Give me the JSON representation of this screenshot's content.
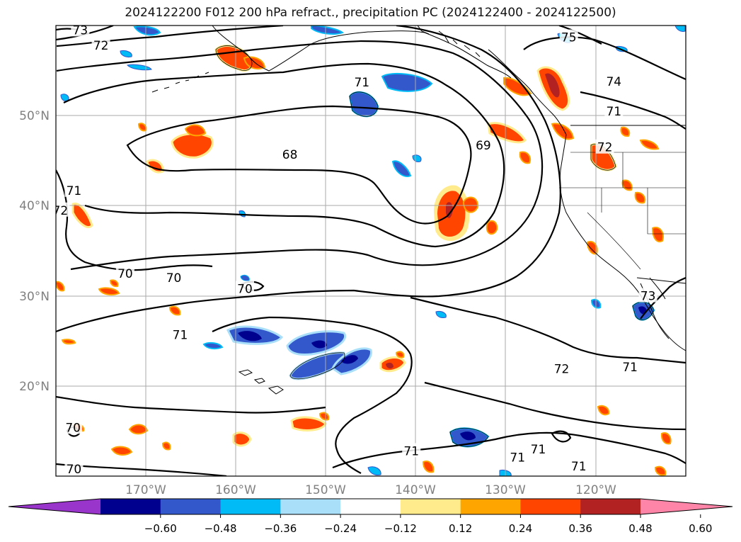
{
  "title": "2024122200 F012 200 hPa refract., precipitation PC (2024122400 - 2024122500)",
  "map": {
    "lon_range": [
      -180,
      -110
    ],
    "lat_range": [
      10,
      60
    ],
    "lat_labels": [
      "50°N",
      "40°N",
      "30°N",
      "20°N"
    ],
    "lon_labels": [
      "170°W",
      "160°W",
      "150°W",
      "140°W",
      "130°W",
      "120°W"
    ],
    "grid": true,
    "contour_labels": [
      {
        "text": "73",
        "lon": -177.3,
        "lat": 59.5
      },
      {
        "text": "72",
        "lon": -175.0,
        "lat": 57.8
      },
      {
        "text": "75",
        "lon": -123.0,
        "lat": 58.7
      },
      {
        "text": "71",
        "lon": -146.0,
        "lat": 53.7
      },
      {
        "text": "74",
        "lon": -118.0,
        "lat": 53.8
      },
      {
        "text": "71",
        "lon": -118.0,
        "lat": 50.5
      },
      {
        "text": "69",
        "lon": -132.5,
        "lat": 46.7
      },
      {
        "text": "68",
        "lon": -154.0,
        "lat": 45.7
      },
      {
        "text": "72",
        "lon": -119.0,
        "lat": 46.5
      },
      {
        "text": "71",
        "lon": -178.0,
        "lat": 41.7
      },
      {
        "text": "72",
        "lon": -179.5,
        "lat": 39.5
      },
      {
        "text": "70",
        "lon": -172.3,
        "lat": 32.5
      },
      {
        "text": "70",
        "lon": -166.9,
        "lat": 32.0
      },
      {
        "text": "70",
        "lon": -159.0,
        "lat": 30.8
      },
      {
        "text": "73",
        "lon": -114.2,
        "lat": 30.0
      },
      {
        "text": "71",
        "lon": -166.2,
        "lat": 25.7
      },
      {
        "text": "72",
        "lon": -123.8,
        "lat": 21.9
      },
      {
        "text": "71",
        "lon": -116.2,
        "lat": 22.1
      },
      {
        "text": "70",
        "lon": -178.1,
        "lat": 15.4
      },
      {
        "text": "71",
        "lon": -140.5,
        "lat": 12.8
      },
      {
        "text": "71",
        "lon": -126.4,
        "lat": 13.0
      },
      {
        "text": "71",
        "lon": -128.7,
        "lat": 12.1
      },
      {
        "text": "71",
        "lon": -121.9,
        "lat": 11.1
      },
      {
        "text": "70",
        "lon": -178.0,
        "lat": 10.8
      }
    ]
  },
  "colorbar": {
    "ticks": [
      "−0.60",
      "−0.48",
      "−0.36",
      "−0.24",
      "−0.12",
      "0.12",
      "0.24",
      "0.36",
      "0.48",
      "0.60"
    ],
    "colors": [
      "#9a35cc",
      "#00008e",
      "#3258cc",
      "#00bbf6",
      "#aadff9",
      "#ffffff",
      "#ffeb8c",
      "#ffa500",
      "#ff4500",
      "#b22222",
      "#ff85a8"
    ],
    "extend": "both"
  },
  "colors": {
    "contour": "#000000",
    "grid": "#aaaaaa",
    "tick_label": "#808080",
    "pos_light": "#ffeb8c",
    "pos_mid": "#ffa500",
    "pos_strong": "#ff4500",
    "pos_max": "#b22222",
    "neg_light": "#aadff9",
    "neg_mid": "#00bbf6",
    "neg_strong": "#3258cc",
    "neg_max": "#00008e"
  }
}
